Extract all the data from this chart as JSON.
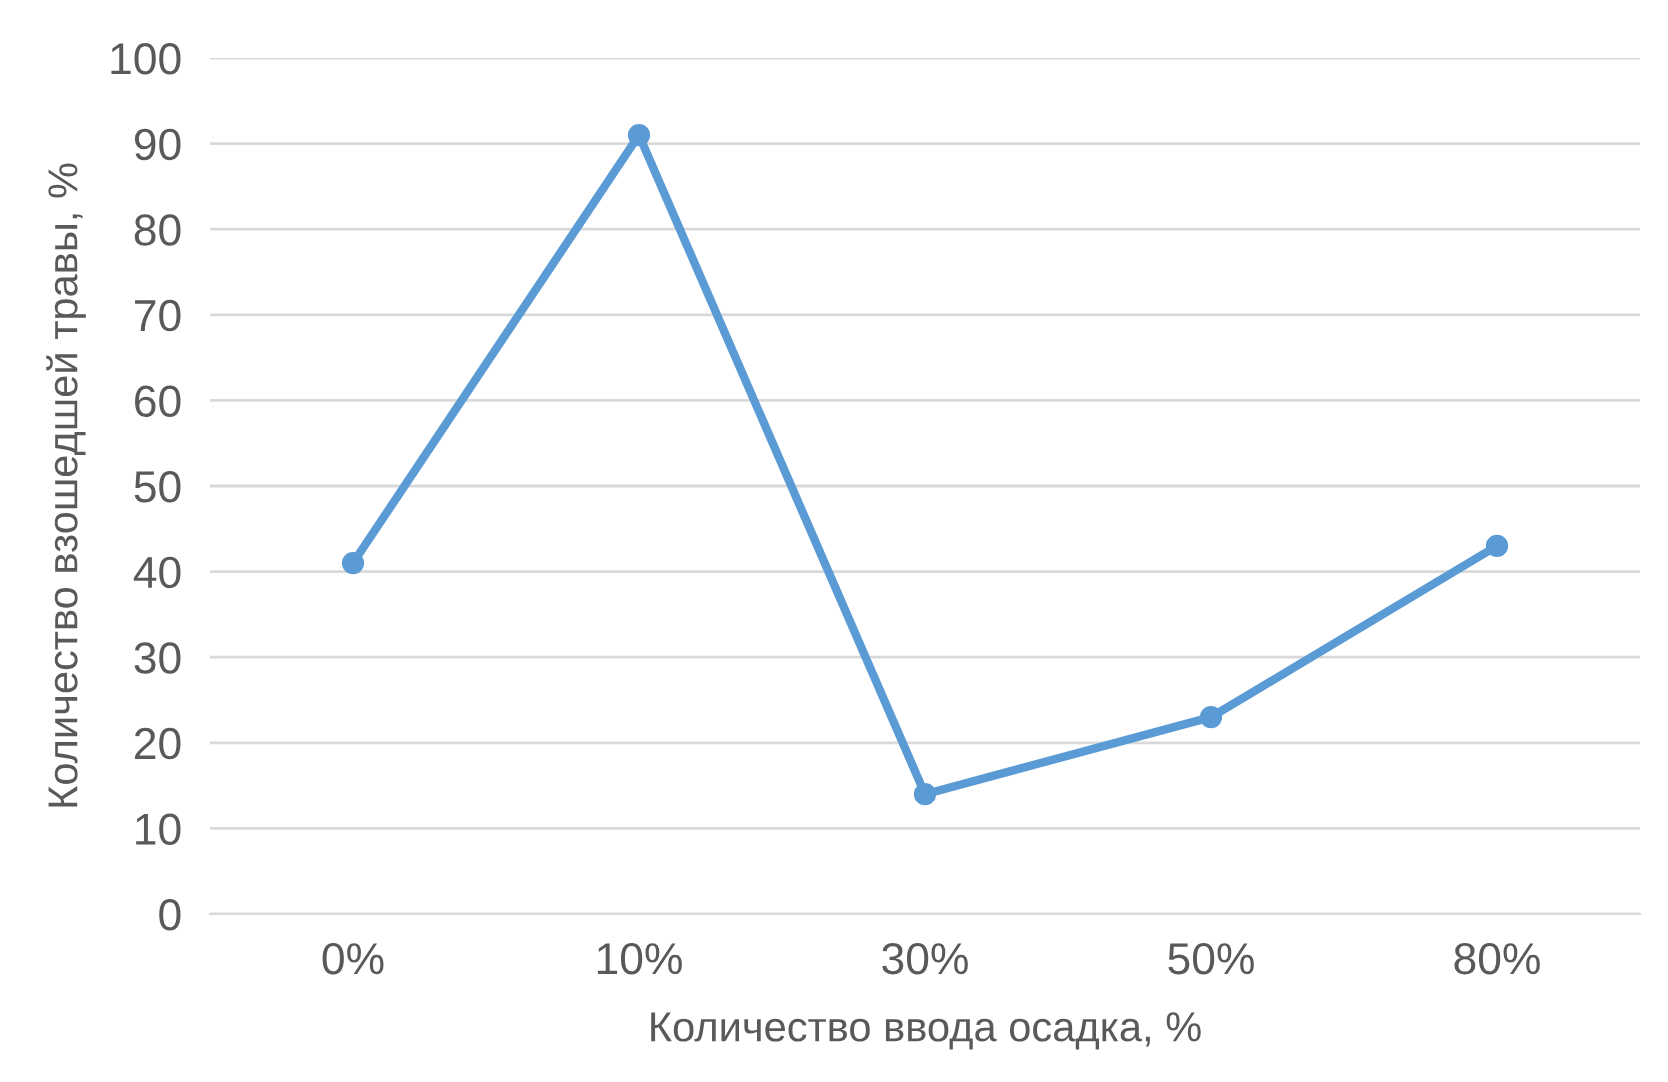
{
  "chart_data": {
    "type": "line",
    "xlabel": "Количество ввода осадка, %",
    "ylabel": "Количество взошедшей травы, %",
    "categories": [
      "0%",
      "10%",
      "30%",
      "50%",
      "80%"
    ],
    "series": [
      {
        "color": "#5b9bd5",
        "values": [
          41,
          91,
          14,
          23,
          43
        ]
      }
    ],
    "ylim": [
      0,
      100
    ],
    "yticks": [
      0,
      10,
      20,
      30,
      40,
      50,
      60,
      70,
      80,
      90,
      100
    ],
    "grid": "y",
    "marker": "circle",
    "line_style": "solid"
  }
}
